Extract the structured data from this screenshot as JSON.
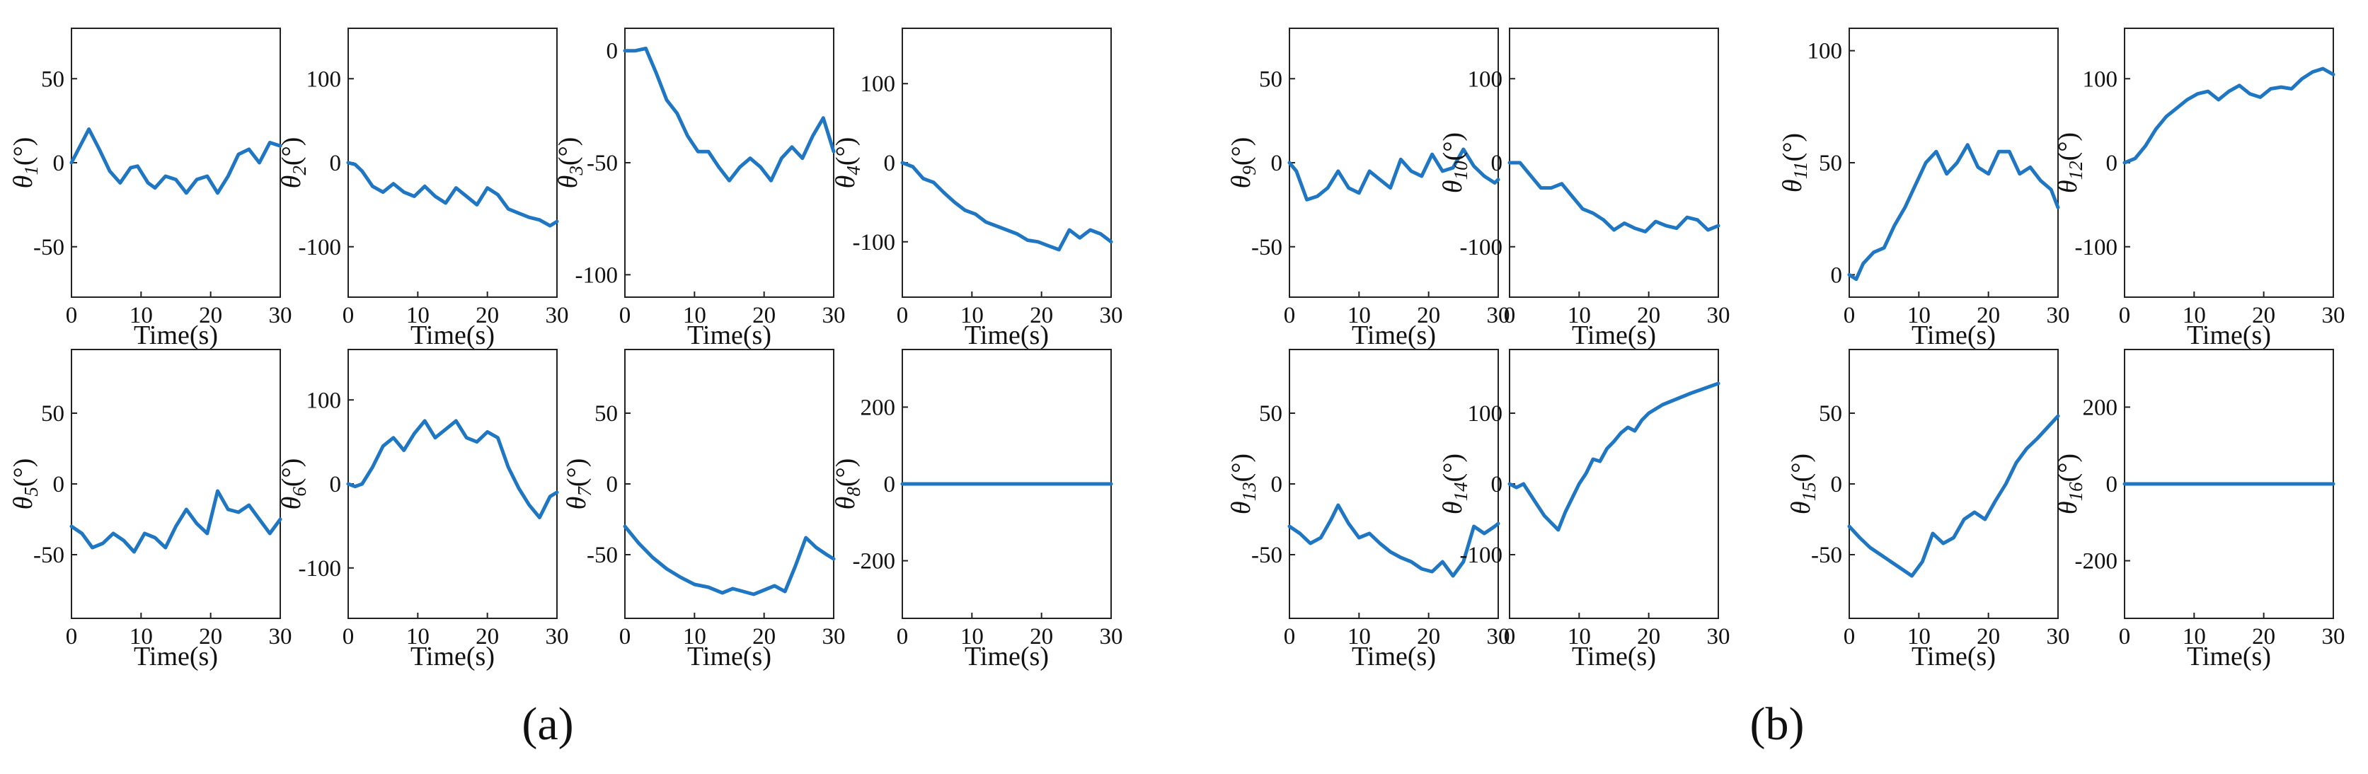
{
  "panel_labels": [
    "(a)",
    "(b)"
  ],
  "colors": {
    "series": "#1f77c4",
    "axes": "#222222"
  },
  "chart_data": [
    {
      "type": "line",
      "panel": "a",
      "ylabel": "θ1(°)",
      "xlabel": "Time(s)",
      "xlim": [
        0,
        30
      ],
      "ylim": [
        -80,
        80
      ],
      "xticks": [
        0,
        10,
        20,
        30
      ],
      "yticks": [
        -50,
        0,
        50
      ],
      "x": [
        0,
        1,
        2.5,
        4,
        5.5,
        7,
        8.5,
        9.5,
        11,
        12,
        13.5,
        15,
        16.5,
        18,
        19.5,
        21,
        22.5,
        24,
        25.5,
        27,
        28.5,
        30
      ],
      "y": [
        0,
        8,
        20,
        8,
        -5,
        -12,
        -3,
        -2,
        -12,
        -15,
        -8,
        -10,
        -18,
        -10,
        -8,
        -18,
        -8,
        5,
        8,
        0,
        12,
        10
      ]
    },
    {
      "type": "line",
      "panel": "a",
      "ylabel": "θ2(°)",
      "xlabel": "Time(s)",
      "xlim": [
        0,
        30
      ],
      "ylim": [
        -160,
        160
      ],
      "xticks": [
        0,
        10,
        20,
        30
      ],
      "yticks": [
        -100,
        0,
        100
      ],
      "x": [
        0,
        1,
        2,
        3.5,
        5,
        6.5,
        8,
        9.5,
        11,
        12.5,
        14,
        15.5,
        17,
        18.5,
        20,
        21.5,
        23,
        24.5,
        26,
        27.5,
        29,
        30
      ],
      "y": [
        0,
        -2,
        -10,
        -28,
        -35,
        -25,
        -35,
        -40,
        -28,
        -40,
        -48,
        -30,
        -40,
        -50,
        -30,
        -38,
        -55,
        -60,
        -65,
        -68,
        -75,
        -70
      ]
    },
    {
      "type": "line",
      "panel": "a",
      "ylabel": "θ3(°)",
      "xlabel": "Time(s)",
      "xlim": [
        0,
        30
      ],
      "ylim": [
        -110,
        10
      ],
      "xticks": [
        0,
        10,
        20,
        30
      ],
      "yticks": [
        -100,
        -50,
        0
      ],
      "x": [
        0,
        1.5,
        3,
        4.5,
        6,
        7.5,
        9,
        10.5,
        12,
        13.5,
        15,
        16.5,
        18,
        19.5,
        21,
        22.5,
        24,
        25.5,
        27,
        28.5,
        30
      ],
      "y": [
        0,
        0,
        1,
        -10,
        -22,
        -28,
        -38,
        -45,
        -45,
        -52,
        -58,
        -52,
        -48,
        -52,
        -58,
        -48,
        -43,
        -48,
        -38,
        -30,
        -45
      ]
    },
    {
      "type": "line",
      "panel": "a",
      "ylabel": "θ4(°)",
      "xlabel": "Time(s)",
      "xlim": [
        0,
        30
      ],
      "ylim": [
        -170,
        170
      ],
      "xticks": [
        0,
        10,
        20,
        30
      ],
      "yticks": [
        -100,
        0,
        100
      ],
      "x": [
        0,
        1.5,
        3,
        4.5,
        6,
        7.5,
        9,
        10.5,
        12,
        13.5,
        15,
        16.5,
        18,
        19.5,
        21,
        22.5,
        24,
        25.5,
        27,
        28.5,
        30
      ],
      "y": [
        0,
        -5,
        -20,
        -25,
        -38,
        -50,
        -60,
        -65,
        -75,
        -80,
        -85,
        -90,
        -98,
        -100,
        -105,
        -110,
        -85,
        -95,
        -85,
        -90,
        -100
      ]
    },
    {
      "type": "line",
      "panel": "a",
      "ylabel": "θ5(°)",
      "xlabel": "Time(s)",
      "xlim": [
        0,
        30
      ],
      "ylim": [
        -95,
        95
      ],
      "xticks": [
        0,
        10,
        20,
        30
      ],
      "yticks": [
        -50,
        0,
        50
      ],
      "x": [
        0,
        1.5,
        3,
        4.5,
        6,
        7.5,
        9,
        10.5,
        12,
        13.5,
        15,
        16.5,
        18,
        19.5,
        21,
        22.5,
        24,
        25.5,
        27,
        28.5,
        30
      ],
      "y": [
        -30,
        -35,
        -45,
        -42,
        -35,
        -40,
        -48,
        -35,
        -38,
        -45,
        -30,
        -18,
        -28,
        -35,
        -5,
        -18,
        -20,
        -15,
        -25,
        -35,
        -25
      ]
    },
    {
      "type": "line",
      "panel": "a",
      "ylabel": "θ6(°)",
      "xlabel": "Time(s)",
      "xlim": [
        0,
        30
      ],
      "ylim": [
        -160,
        160
      ],
      "xticks": [
        0,
        10,
        20,
        30
      ],
      "yticks": [
        -100,
        0,
        100
      ],
      "x": [
        0,
        1,
        2,
        3.5,
        5,
        6.5,
        8,
        9.5,
        11,
        12.5,
        14,
        15.5,
        17,
        18.5,
        20,
        21.5,
        23,
        24.5,
        26,
        27.5,
        29,
        30
      ],
      "y": [
        0,
        -3,
        0,
        20,
        45,
        55,
        40,
        60,
        75,
        55,
        65,
        75,
        55,
        50,
        62,
        55,
        20,
        -5,
        -25,
        -40,
        -15,
        -10
      ]
    },
    {
      "type": "line",
      "panel": "a",
      "ylabel": "θ7(°)",
      "xlabel": "Time(s)",
      "xlim": [
        0,
        30
      ],
      "ylim": [
        -95,
        95
      ],
      "xticks": [
        0,
        10,
        20,
        30
      ],
      "yticks": [
        -50,
        0,
        50
      ],
      "x": [
        0,
        2,
        4,
        6,
        8,
        10,
        12,
        14,
        15.5,
        17,
        18.5,
        20,
        21.5,
        23,
        24.5,
        26,
        27.5,
        29,
        30
      ],
      "y": [
        -30,
        -42,
        -52,
        -60,
        -66,
        -71,
        -73,
        -77,
        -74,
        -76,
        -78,
        -75,
        -72,
        -76,
        -58,
        -38,
        -45,
        -50,
        -53
      ]
    },
    {
      "type": "line",
      "panel": "a",
      "ylabel": "θ8(°)",
      "xlabel": "Time(s)",
      "xlim": [
        0,
        30
      ],
      "ylim": [
        -350,
        350
      ],
      "xticks": [
        0,
        10,
        20,
        30
      ],
      "yticks": [
        -200,
        0,
        200
      ],
      "x": [
        0,
        30
      ],
      "y": [
        0,
        0
      ]
    },
    {
      "type": "line",
      "panel": "b",
      "ylabel": "θ9(°)",
      "xlabel": "Time(s)",
      "xlim": [
        0,
        30
      ],
      "ylim": [
        -80,
        80
      ],
      "xticks": [
        0,
        10,
        20,
        30
      ],
      "yticks": [
        -50,
        0,
        50
      ],
      "x": [
        0,
        1,
        2.5,
        4,
        5.5,
        7,
        8.5,
        10,
        11.5,
        13,
        14.5,
        16,
        17.5,
        19,
        20.5,
        22,
        23.5,
        25,
        26.5,
        28,
        29.5,
        30
      ],
      "y": [
        0,
        -5,
        -22,
        -20,
        -15,
        -5,
        -15,
        -18,
        -5,
        -10,
        -15,
        2,
        -5,
        -8,
        5,
        -5,
        -3,
        8,
        -2,
        -8,
        -12,
        -10
      ]
    },
    {
      "type": "line",
      "panel": "b",
      "ylabel": "θ10(°)",
      "xlabel": "Time(s)",
      "xlim": [
        0,
        30
      ],
      "ylim": [
        -160,
        160
      ],
      "xticks": [
        0,
        10,
        20,
        30
      ],
      "yticks": [
        -100,
        0,
        100
      ],
      "x": [
        0,
        1.5,
        3,
        4.5,
        6,
        7.5,
        9,
        10.5,
        12,
        13.5,
        15,
        16.5,
        18,
        19.5,
        21,
        22.5,
        24,
        25.5,
        27,
        28.5,
        30
      ],
      "y": [
        0,
        0,
        -15,
        -30,
        -30,
        -25,
        -40,
        -55,
        -60,
        -68,
        -80,
        -72,
        -78,
        -82,
        -70,
        -75,
        -78,
        -65,
        -68,
        -80,
        -75
      ]
    },
    {
      "type": "line",
      "panel": "b",
      "ylabel": "θ11(°)",
      "xlabel": "Time(s)",
      "xlim": [
        0,
        30
      ],
      "ylim": [
        -10,
        110
      ],
      "xticks": [
        0,
        10,
        20,
        30
      ],
      "yticks": [
        0,
        50,
        100
      ],
      "x": [
        0,
        1,
        2,
        3.5,
        5,
        6.5,
        8,
        9.5,
        11,
        12.5,
        14,
        15.5,
        17,
        18.5,
        20,
        21.5,
        23,
        24.5,
        26,
        27.5,
        29,
        30
      ],
      "y": [
        0,
        -2,
        5,
        10,
        12,
        22,
        30,
        40,
        50,
        55,
        45,
        50,
        58,
        48,
        45,
        55,
        55,
        45,
        48,
        42,
        38,
        30
      ]
    },
    {
      "type": "line",
      "panel": "b",
      "ylabel": "θ12(°)",
      "xlabel": "Time(s)",
      "xlim": [
        0,
        30
      ],
      "ylim": [
        -160,
        160
      ],
      "xticks": [
        0,
        10,
        20,
        30
      ],
      "yticks": [
        -100,
        0,
        100
      ],
      "x": [
        0,
        1.5,
        3,
        4.5,
        6,
        7.5,
        9,
        10.5,
        12,
        13.5,
        15,
        16.5,
        18,
        19.5,
        21,
        22.5,
        24,
        25.5,
        27,
        28.5,
        30
      ],
      "y": [
        0,
        5,
        20,
        40,
        55,
        65,
        75,
        82,
        85,
        75,
        85,
        92,
        82,
        78,
        88,
        90,
        88,
        100,
        108,
        112,
        105
      ]
    },
    {
      "type": "line",
      "panel": "b",
      "ylabel": "θ13(°)",
      "xlabel": "Time(s)",
      "xlim": [
        0,
        30
      ],
      "ylim": [
        -95,
        95
      ],
      "xticks": [
        0,
        10,
        20,
        30
      ],
      "yticks": [
        -50,
        0,
        50
      ],
      "x": [
        0,
        1.5,
        3,
        4.5,
        6,
        7,
        8.5,
        10,
        11.5,
        13,
        14.5,
        16,
        17.5,
        19,
        20.5,
        22,
        23.5,
        25,
        26.5,
        28,
        29.5,
        30
      ],
      "y": [
        -30,
        -35,
        -42,
        -38,
        -25,
        -15,
        -28,
        -38,
        -35,
        -42,
        -48,
        -52,
        -55,
        -60,
        -62,
        -55,
        -65,
        -55,
        -30,
        -35,
        -30,
        -28
      ]
    },
    {
      "type": "line",
      "panel": "b",
      "ylabel": "θ14(°)",
      "xlabel": "Time(s)",
      "xlim": [
        0,
        30
      ],
      "ylim": [
        -190,
        190
      ],
      "xticks": [
        0,
        10,
        20,
        30
      ],
      "yticks": [
        -100,
        0,
        100
      ],
      "x": [
        0,
        1,
        2,
        3,
        4,
        5,
        6,
        7,
        8,
        9,
        10,
        11,
        12,
        13,
        14,
        15,
        16,
        17,
        18,
        19,
        20,
        22,
        24,
        26,
        28,
        30
      ],
      "y": [
        0,
        -5,
        0,
        -15,
        -30,
        -45,
        -55,
        -65,
        -40,
        -20,
        0,
        15,
        35,
        32,
        50,
        60,
        72,
        80,
        75,
        90,
        100,
        112,
        120,
        128,
        135,
        142
      ]
    },
    {
      "type": "line",
      "panel": "b",
      "ylabel": "θ15(°)",
      "xlabel": "Time(s)",
      "xlim": [
        0,
        30
      ],
      "ylim": [
        -95,
        95
      ],
      "xticks": [
        0,
        10,
        20,
        30
      ],
      "yticks": [
        -50,
        0,
        50
      ],
      "x": [
        0,
        1.5,
        3,
        4.5,
        6,
        7.5,
        9,
        10.5,
        12,
        13.5,
        15,
        16.5,
        18,
        19.5,
        21,
        22.5,
        24,
        25.5,
        27,
        28.5,
        30
      ],
      "y": [
        -30,
        -38,
        -45,
        -50,
        -55,
        -60,
        -65,
        -55,
        -35,
        -42,
        -38,
        -25,
        -20,
        -25,
        -12,
        0,
        15,
        25,
        32,
        40,
        48
      ]
    },
    {
      "type": "line",
      "panel": "b",
      "ylabel": "θ16(°)",
      "xlabel": "Time(s)",
      "xlim": [
        0,
        30
      ],
      "ylim": [
        -350,
        350
      ],
      "xticks": [
        0,
        10,
        20,
        30
      ],
      "yticks": [
        -200,
        0,
        200
      ],
      "x": [
        0,
        30
      ],
      "y": [
        0,
        0
      ]
    }
  ]
}
